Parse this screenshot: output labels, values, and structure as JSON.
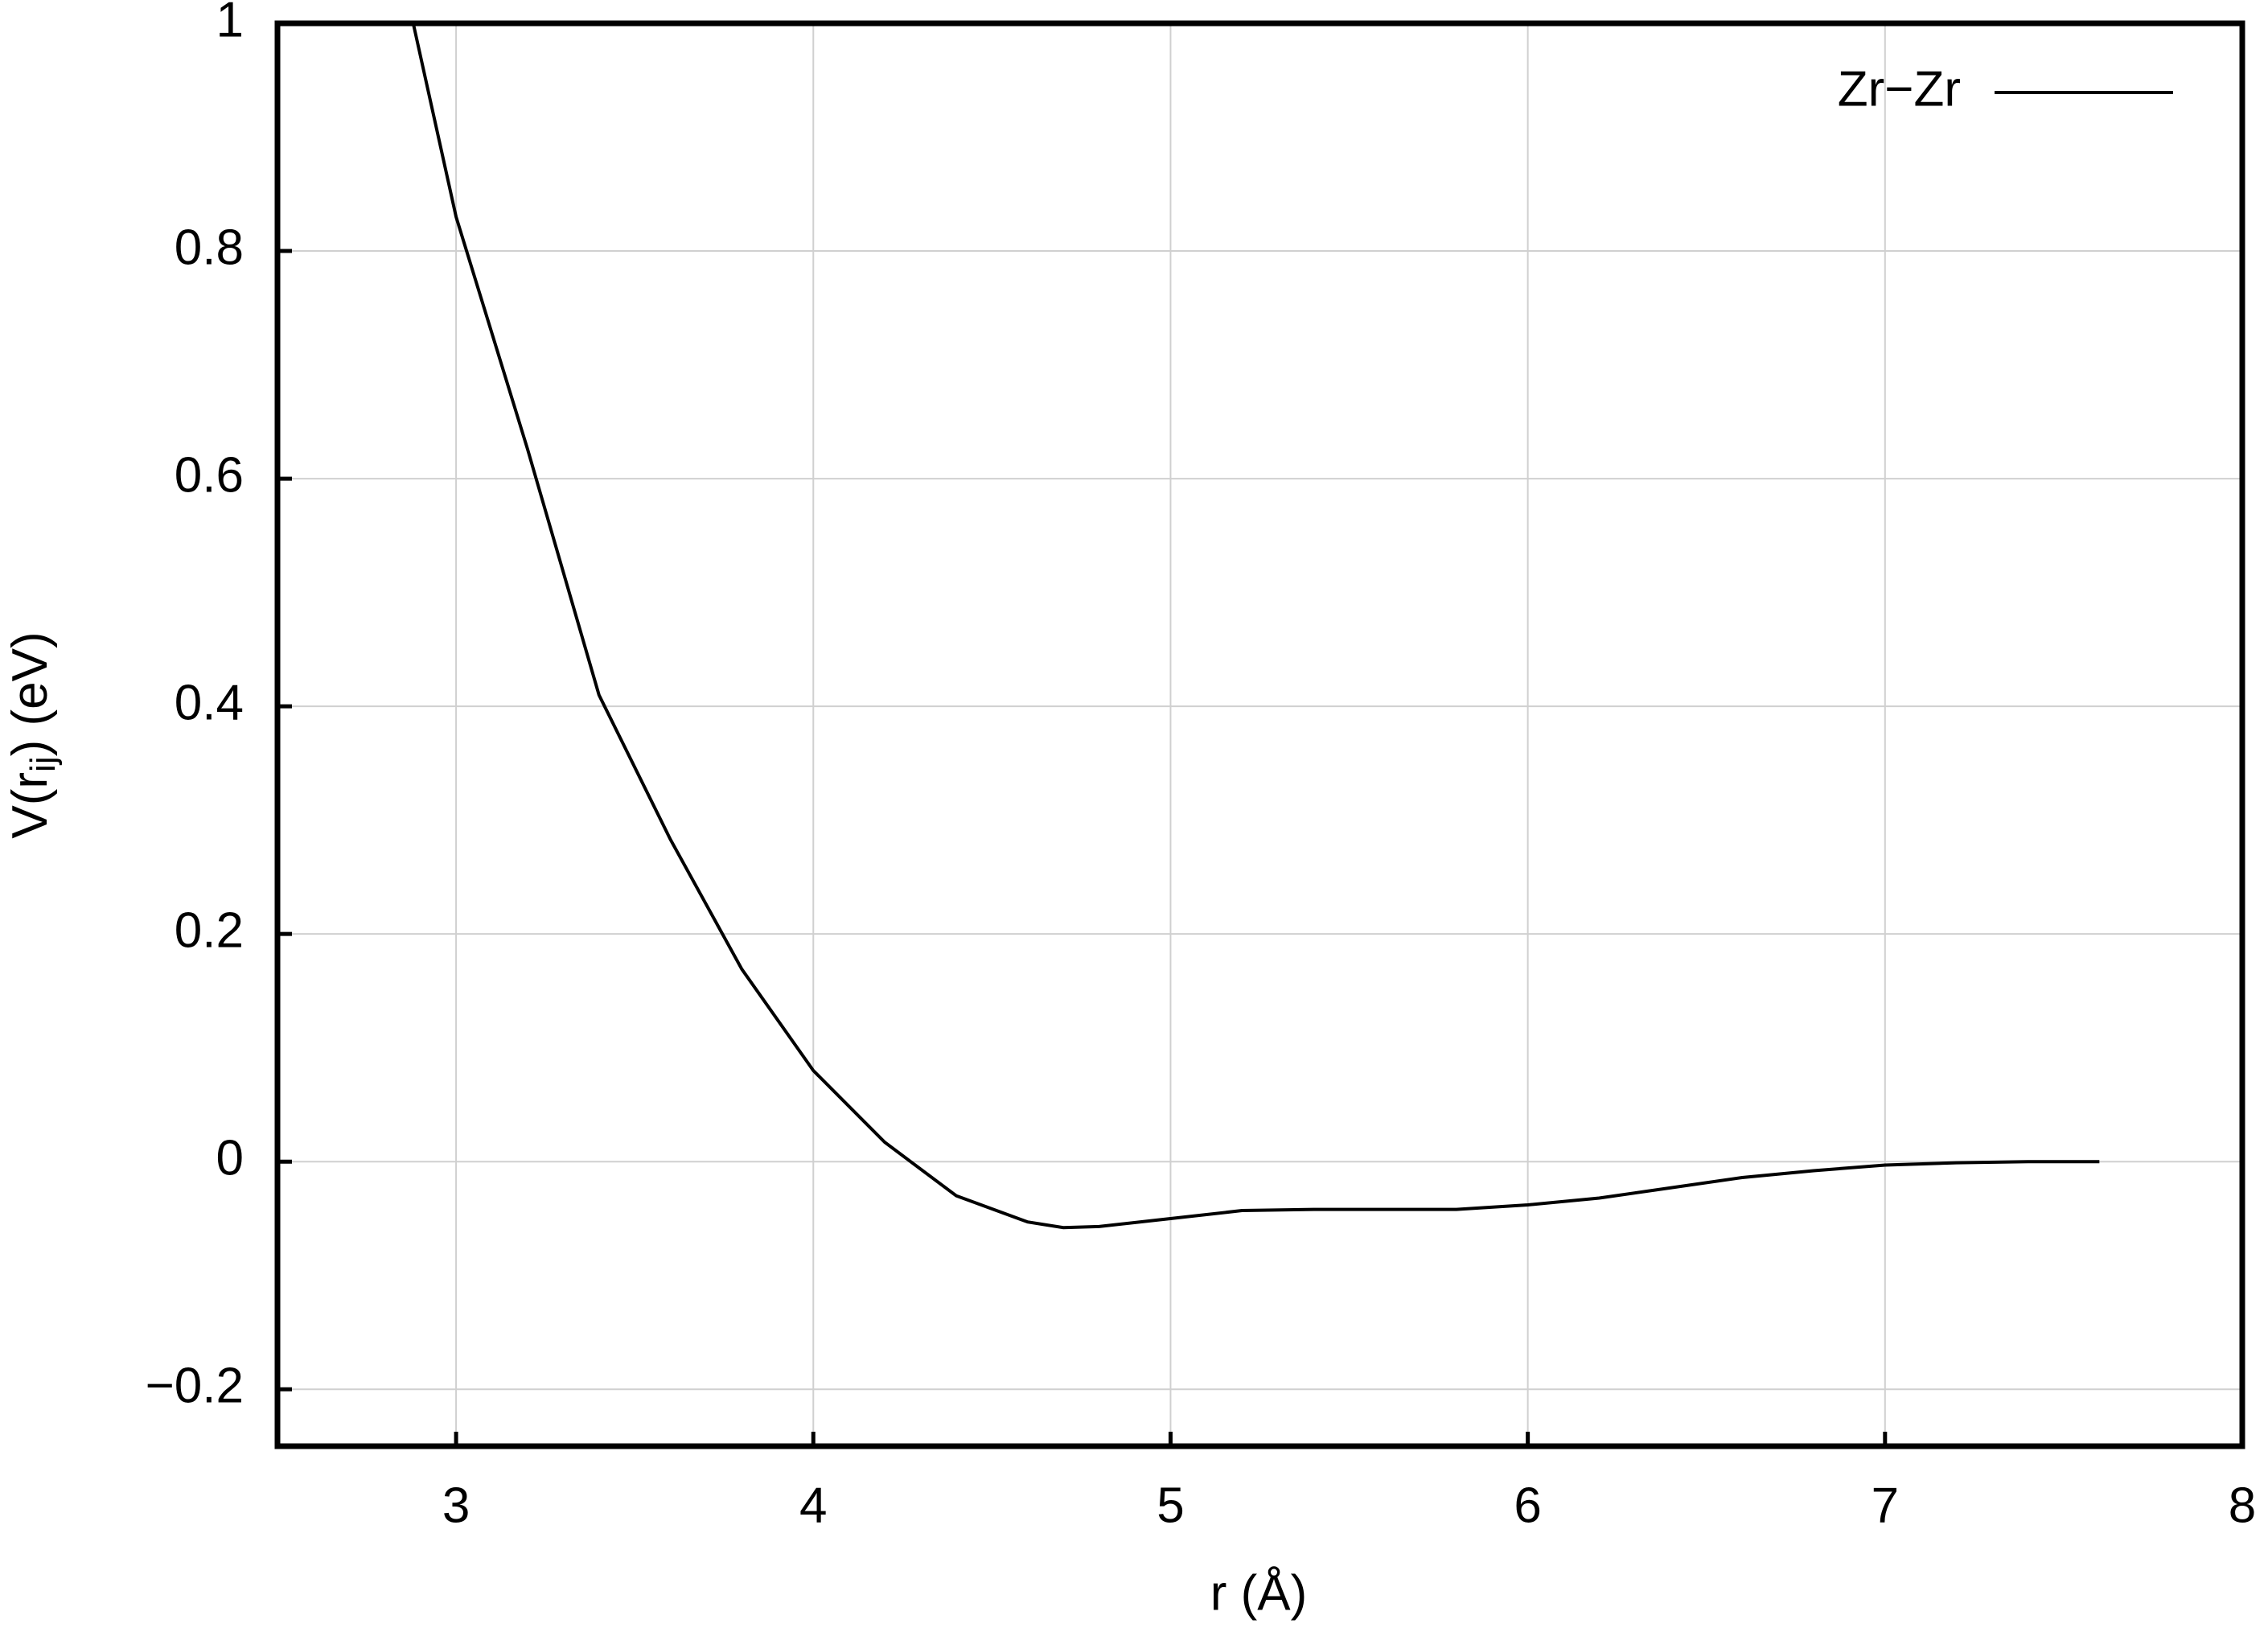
{
  "chart_data": {
    "type": "line",
    "xlabel": "r (Å)",
    "ylabel": [
      "V(r",
      "ij",
      ") (eV)"
    ],
    "x": [
      2.88,
      3.0,
      3.2,
      3.4,
      3.6,
      3.8,
      4.0,
      4.2,
      4.4,
      4.6,
      4.7,
      4.8,
      5.0,
      5.2,
      5.4,
      5.6,
      5.8,
      6.0,
      6.2,
      6.4,
      6.6,
      6.8,
      7.0,
      7.2,
      7.4,
      7.6
    ],
    "series": [
      {
        "name": "Zr−Zr",
        "color": "#000000",
        "values": [
          1.0,
          0.83,
          0.626,
          0.41,
          0.283,
          0.169,
          0.08,
          0.017,
          -0.03,
          -0.053,
          -0.058,
          -0.057,
          -0.05,
          -0.043,
          -0.042,
          -0.042,
          -0.042,
          -0.038,
          -0.032,
          -0.023,
          -0.014,
          -0.008,
          -0.003,
          -0.001,
          0,
          0
        ]
      }
    ],
    "xlim": [
      2.5,
      8
    ],
    "ylim": [
      -0.25,
      1
    ],
    "xticks": [
      3,
      4,
      5,
      6,
      7,
      8
    ],
    "yticks": [
      {
        "value": -0.2,
        "label": "−0.2"
      },
      0,
      0.2,
      0.4,
      0.6,
      0.8,
      1
    ],
    "grid": true,
    "legend": "upper right"
  }
}
